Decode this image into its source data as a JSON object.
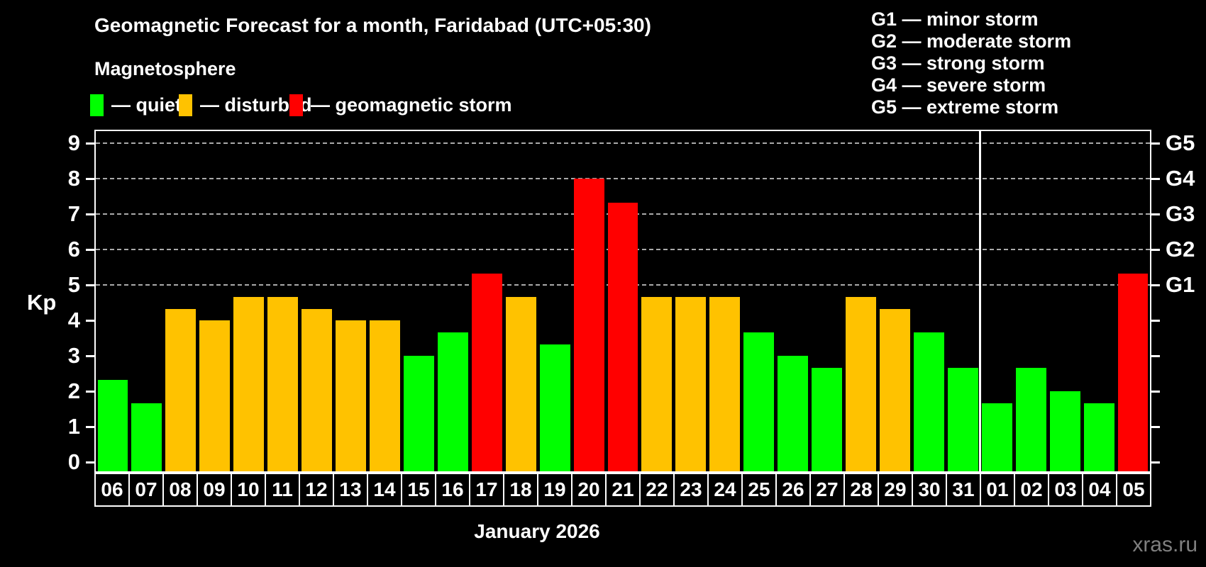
{
  "header": {
    "title": "Geomagnetic Forecast for a month, Faridabad (UTC+05:30)",
    "subtitle": "Magnetosphere"
  },
  "legend": {
    "items": [
      {
        "label": "— quiet",
        "status": "quiet",
        "color": "#00FF00"
      },
      {
        "label": "— disturbed",
        "status": "disturbed",
        "color": "#FFC200"
      },
      {
        "label": "— geomagnetic storm",
        "status": "storm",
        "color": "#FF0000"
      }
    ]
  },
  "g_legend": {
    "lines": [
      "G1 — minor storm",
      "G2 — moderate storm",
      "G3 — strong storm",
      "G4 — severe storm",
      "G5 — extreme storm"
    ]
  },
  "chart_data": {
    "type": "bar",
    "title": "Geomagnetic Forecast for a month, Faridabad (UTC+05:30)",
    "ylabel": "Kp",
    "xlabel": "January 2026",
    "ylim": [
      0,
      9
    ],
    "yticks": [
      0,
      1,
      2,
      3,
      4,
      5,
      6,
      7,
      8,
      9
    ],
    "grid_levels": [
      5,
      6,
      7,
      8,
      9
    ],
    "grid_style": "dashed",
    "legend_position": "top-left",
    "right_axis": [
      {
        "kp": 5,
        "label": "G1"
      },
      {
        "kp": 6,
        "label": "G2"
      },
      {
        "kp": 7,
        "label": "G3"
      },
      {
        "kp": 8,
        "label": "G4"
      },
      {
        "kp": 9,
        "label": "G5"
      }
    ],
    "status_colors": {
      "quiet": "#00FF00",
      "disturbed": "#FFC200",
      "storm": "#FF0000"
    },
    "month_divider_after_index": 25,
    "bars": [
      {
        "day": "06",
        "kp": 2.33,
        "status": "quiet"
      },
      {
        "day": "07",
        "kp": 1.67,
        "status": "quiet"
      },
      {
        "day": "08",
        "kp": 4.33,
        "status": "disturbed"
      },
      {
        "day": "09",
        "kp": 4.0,
        "status": "disturbed"
      },
      {
        "day": "10",
        "kp": 4.67,
        "status": "disturbed"
      },
      {
        "day": "11",
        "kp": 4.67,
        "status": "disturbed"
      },
      {
        "day": "12",
        "kp": 4.33,
        "status": "disturbed"
      },
      {
        "day": "13",
        "kp": 4.0,
        "status": "disturbed"
      },
      {
        "day": "14",
        "kp": 4.0,
        "status": "disturbed"
      },
      {
        "day": "15",
        "kp": 3.0,
        "status": "quiet"
      },
      {
        "day": "16",
        "kp": 3.67,
        "status": "quiet"
      },
      {
        "day": "17",
        "kp": 5.33,
        "status": "storm"
      },
      {
        "day": "18",
        "kp": 4.67,
        "status": "disturbed"
      },
      {
        "day": "19",
        "kp": 3.33,
        "status": "quiet"
      },
      {
        "day": "20",
        "kp": 8.0,
        "status": "storm"
      },
      {
        "day": "21",
        "kp": 7.33,
        "status": "storm"
      },
      {
        "day": "22",
        "kp": 4.67,
        "status": "disturbed"
      },
      {
        "day": "23",
        "kp": 4.67,
        "status": "disturbed"
      },
      {
        "day": "24",
        "kp": 4.67,
        "status": "disturbed"
      },
      {
        "day": "25",
        "kp": 3.67,
        "status": "quiet"
      },
      {
        "day": "26",
        "kp": 3.0,
        "status": "quiet"
      },
      {
        "day": "27",
        "kp": 2.67,
        "status": "quiet"
      },
      {
        "day": "28",
        "kp": 4.67,
        "status": "disturbed"
      },
      {
        "day": "29",
        "kp": 4.33,
        "status": "disturbed"
      },
      {
        "day": "30",
        "kp": 3.67,
        "status": "quiet"
      },
      {
        "day": "31",
        "kp": 2.67,
        "status": "quiet"
      },
      {
        "day": "01",
        "kp": 1.67,
        "status": "quiet"
      },
      {
        "day": "02",
        "kp": 2.67,
        "status": "quiet"
      },
      {
        "day": "03",
        "kp": 2.0,
        "status": "quiet"
      },
      {
        "day": "04",
        "kp": 1.67,
        "status": "quiet"
      },
      {
        "day": "05",
        "kp": 5.33,
        "status": "storm"
      }
    ]
  },
  "watermark": "xras.ru"
}
